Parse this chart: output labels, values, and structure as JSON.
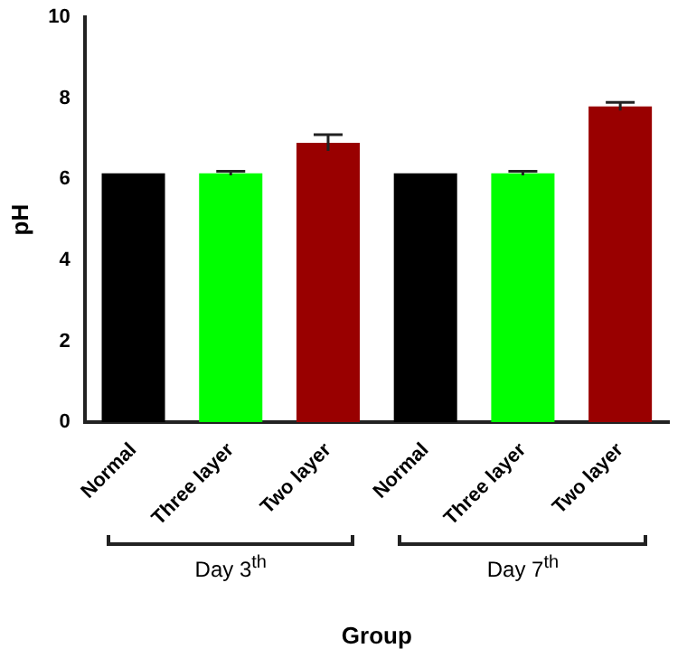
{
  "chart_data": {
    "type": "bar",
    "xlabel": "Group",
    "ylabel": "pH",
    "categories": [
      "Normal",
      "Three layer",
      "Two layer",
      "Normal",
      "Three layer",
      "Two layer"
    ],
    "values": [
      6.15,
      6.15,
      6.9,
      6.15,
      6.15,
      7.8
    ],
    "errors": [
      null,
      0.05,
      0.2,
      null,
      0.05,
      0.1
    ],
    "colors": [
      "#000000",
      "#00ff00",
      "#990000",
      "#000000",
      "#00ff00",
      "#990000"
    ],
    "ylim": [
      0,
      10
    ],
    "yticks": [
      0,
      2,
      4,
      6,
      8,
      10
    ],
    "grid": false,
    "legend": false,
    "annotations": [
      "Day 3$^{th}$",
      "Day 7$^{th}$"
    ]
  }
}
